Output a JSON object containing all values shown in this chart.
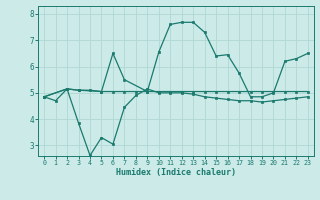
{
  "xlabel": "Humidex (Indice chaleur)",
  "bg_color": "#cceae8",
  "line_color": "#1a7a6e",
  "grid_color": "#b0d8d4",
  "ylim": [
    2.6,
    8.3
  ],
  "xlim": [
    -0.5,
    23.5
  ],
  "line1_x": [
    0,
    1,
    2,
    3,
    4,
    5,
    6,
    7,
    8,
    9,
    10,
    11,
    12,
    13,
    14,
    15,
    16,
    17,
    18,
    19,
    20,
    21,
    22,
    23
  ],
  "line1_y": [
    4.85,
    4.7,
    5.15,
    3.85,
    2.62,
    3.3,
    3.05,
    4.45,
    4.9,
    5.15,
    5.0,
    5.0,
    5.0,
    4.95,
    4.85,
    4.8,
    4.75,
    4.7,
    4.7,
    4.65,
    4.7,
    4.75,
    4.8,
    4.85
  ],
  "line2_x": [
    0,
    2,
    3,
    4,
    5,
    6,
    7,
    8,
    9,
    10,
    11,
    12,
    13,
    14,
    15,
    16,
    17,
    18,
    19,
    20,
    21,
    22,
    23
  ],
  "line2_y": [
    4.85,
    5.15,
    5.1,
    5.1,
    5.05,
    5.05,
    5.05,
    5.05,
    5.05,
    5.05,
    5.05,
    5.05,
    5.05,
    5.05,
    5.05,
    5.05,
    5.05,
    5.05,
    5.05,
    5.05,
    5.05,
    5.05,
    5.05
  ],
  "line3_x": [
    0,
    2,
    3,
    5,
    6,
    7,
    9,
    10,
    11,
    12,
    13,
    14,
    15,
    16,
    17,
    18,
    19,
    20,
    21,
    22,
    23
  ],
  "line3_y": [
    4.85,
    5.15,
    5.1,
    5.05,
    6.5,
    5.5,
    5.05,
    6.55,
    7.6,
    7.68,
    7.68,
    7.3,
    6.4,
    6.45,
    5.75,
    4.85,
    4.85,
    5.0,
    6.2,
    6.3,
    6.5
  ],
  "yticks": [
    3,
    4,
    5,
    6,
    7,
    8
  ],
  "xticks": [
    0,
    1,
    2,
    3,
    4,
    5,
    6,
    7,
    8,
    9,
    10,
    11,
    12,
    13,
    14,
    15,
    16,
    17,
    18,
    19,
    20,
    21,
    22,
    23
  ]
}
